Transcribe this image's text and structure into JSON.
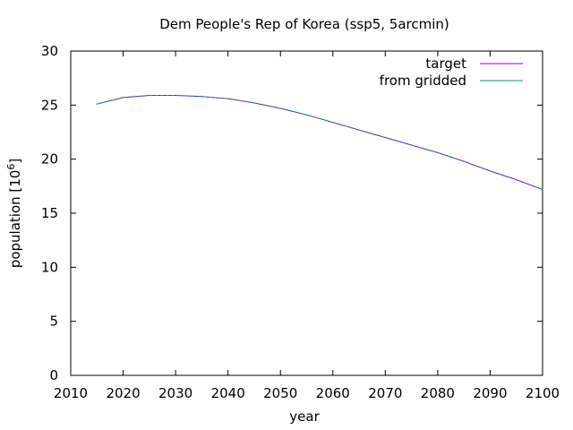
{
  "chart_data": {
    "type": "line",
    "title": "Dem People's Rep of Korea (ssp5, 5arcmin)",
    "xlabel": "year",
    "ylabel": "population [10",
    "ylabel_superscript": "6",
    "ylabel_suffix": "]",
    "xlim": [
      2010,
      2100
    ],
    "ylim": [
      0,
      30
    ],
    "xticks": [
      "2010",
      "2020",
      "2030",
      "2040",
      "2050",
      "2060",
      "2070",
      "2080",
      "2090",
      "2100"
    ],
    "yticks": [
      "0",
      "5",
      "10",
      "15",
      "20",
      "25",
      "30"
    ],
    "legend_position": "top-right",
    "grid": false,
    "series": [
      {
        "name": "target",
        "color": "#9400d3",
        "x": [
          2015,
          2020,
          2025,
          2030,
          2035,
          2040,
          2045,
          2050,
          2055,
          2060,
          2065,
          2070,
          2075,
          2080,
          2085,
          2090,
          2095,
          2100
        ],
        "y": [
          25.1,
          25.7,
          25.9,
          25.9,
          25.8,
          25.6,
          25.2,
          24.7,
          24.1,
          23.4,
          22.7,
          22.0,
          21.3,
          20.6,
          19.8,
          18.9,
          18.1,
          17.2
        ]
      },
      {
        "name": "from gridded",
        "color": "#009e73",
        "x": [
          2015,
          2020,
          2025,
          2030,
          2035,
          2040,
          2045,
          2050,
          2055,
          2060,
          2065,
          2070,
          2075,
          2080,
          2085,
          2090,
          2095,
          2100
        ],
        "y": [
          25.1,
          25.7,
          25.9,
          25.9,
          25.8,
          25.6,
          25.2,
          24.7,
          24.1,
          23.4,
          22.7,
          22.0,
          21.3,
          20.6,
          19.8,
          18.9,
          18.1,
          17.2
        ]
      }
    ]
  }
}
